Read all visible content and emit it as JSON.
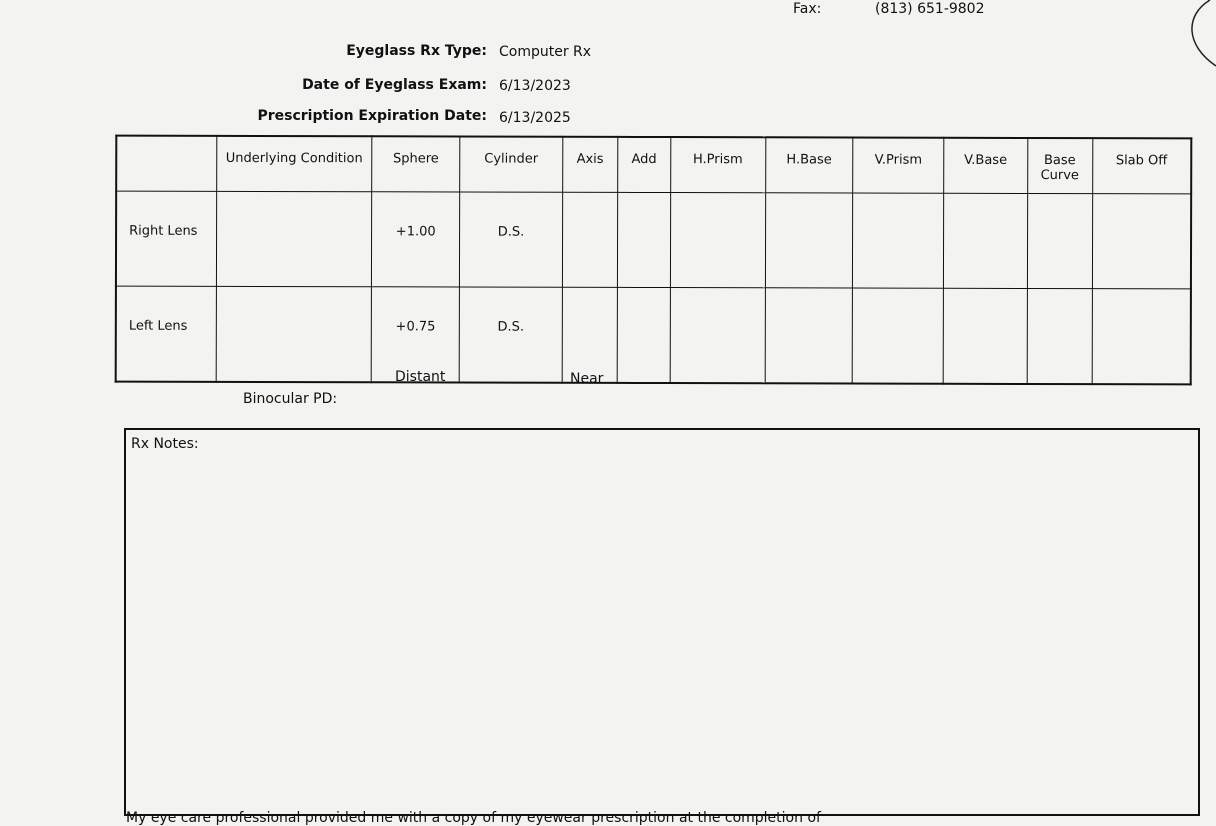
{
  "header": {
    "fax_label": "Fax:",
    "fax_value": "(813) 651-9802"
  },
  "info": [
    {
      "label": "Eyeglass Rx Type:",
      "value": "Computer Rx"
    },
    {
      "label": "Date of Eyeglass Exam:",
      "value": "6/13/2023"
    },
    {
      "label": "Prescription Expiration Date:",
      "value": "6/13/2025"
    }
  ],
  "table": {
    "headers": [
      "",
      "Underlying Condition",
      "Sphere",
      "Cylinder",
      "Axis",
      "Add",
      "H.Prism",
      "H.Base",
      "V.Prism",
      "V.Base",
      "Base Curve",
      "Slab Off"
    ],
    "rows": [
      [
        "Right Lens",
        "",
        "+1.00",
        "D.S.",
        "",
        "",
        "",
        "",
        "",
        "",
        "",
        ""
      ],
      [
        "Left Lens",
        "",
        "+0.75",
        "D.S.",
        "",
        "",
        "",
        "",
        "",
        "",
        "",
        ""
      ]
    ]
  },
  "pd": {
    "label": "Binocular PD:",
    "distant": "Distant",
    "near": "Near"
  },
  "notes": {
    "label": "Rx Notes:"
  },
  "footer": "My eye care professional provided me with a copy of my eyewear prescription at the completion of"
}
